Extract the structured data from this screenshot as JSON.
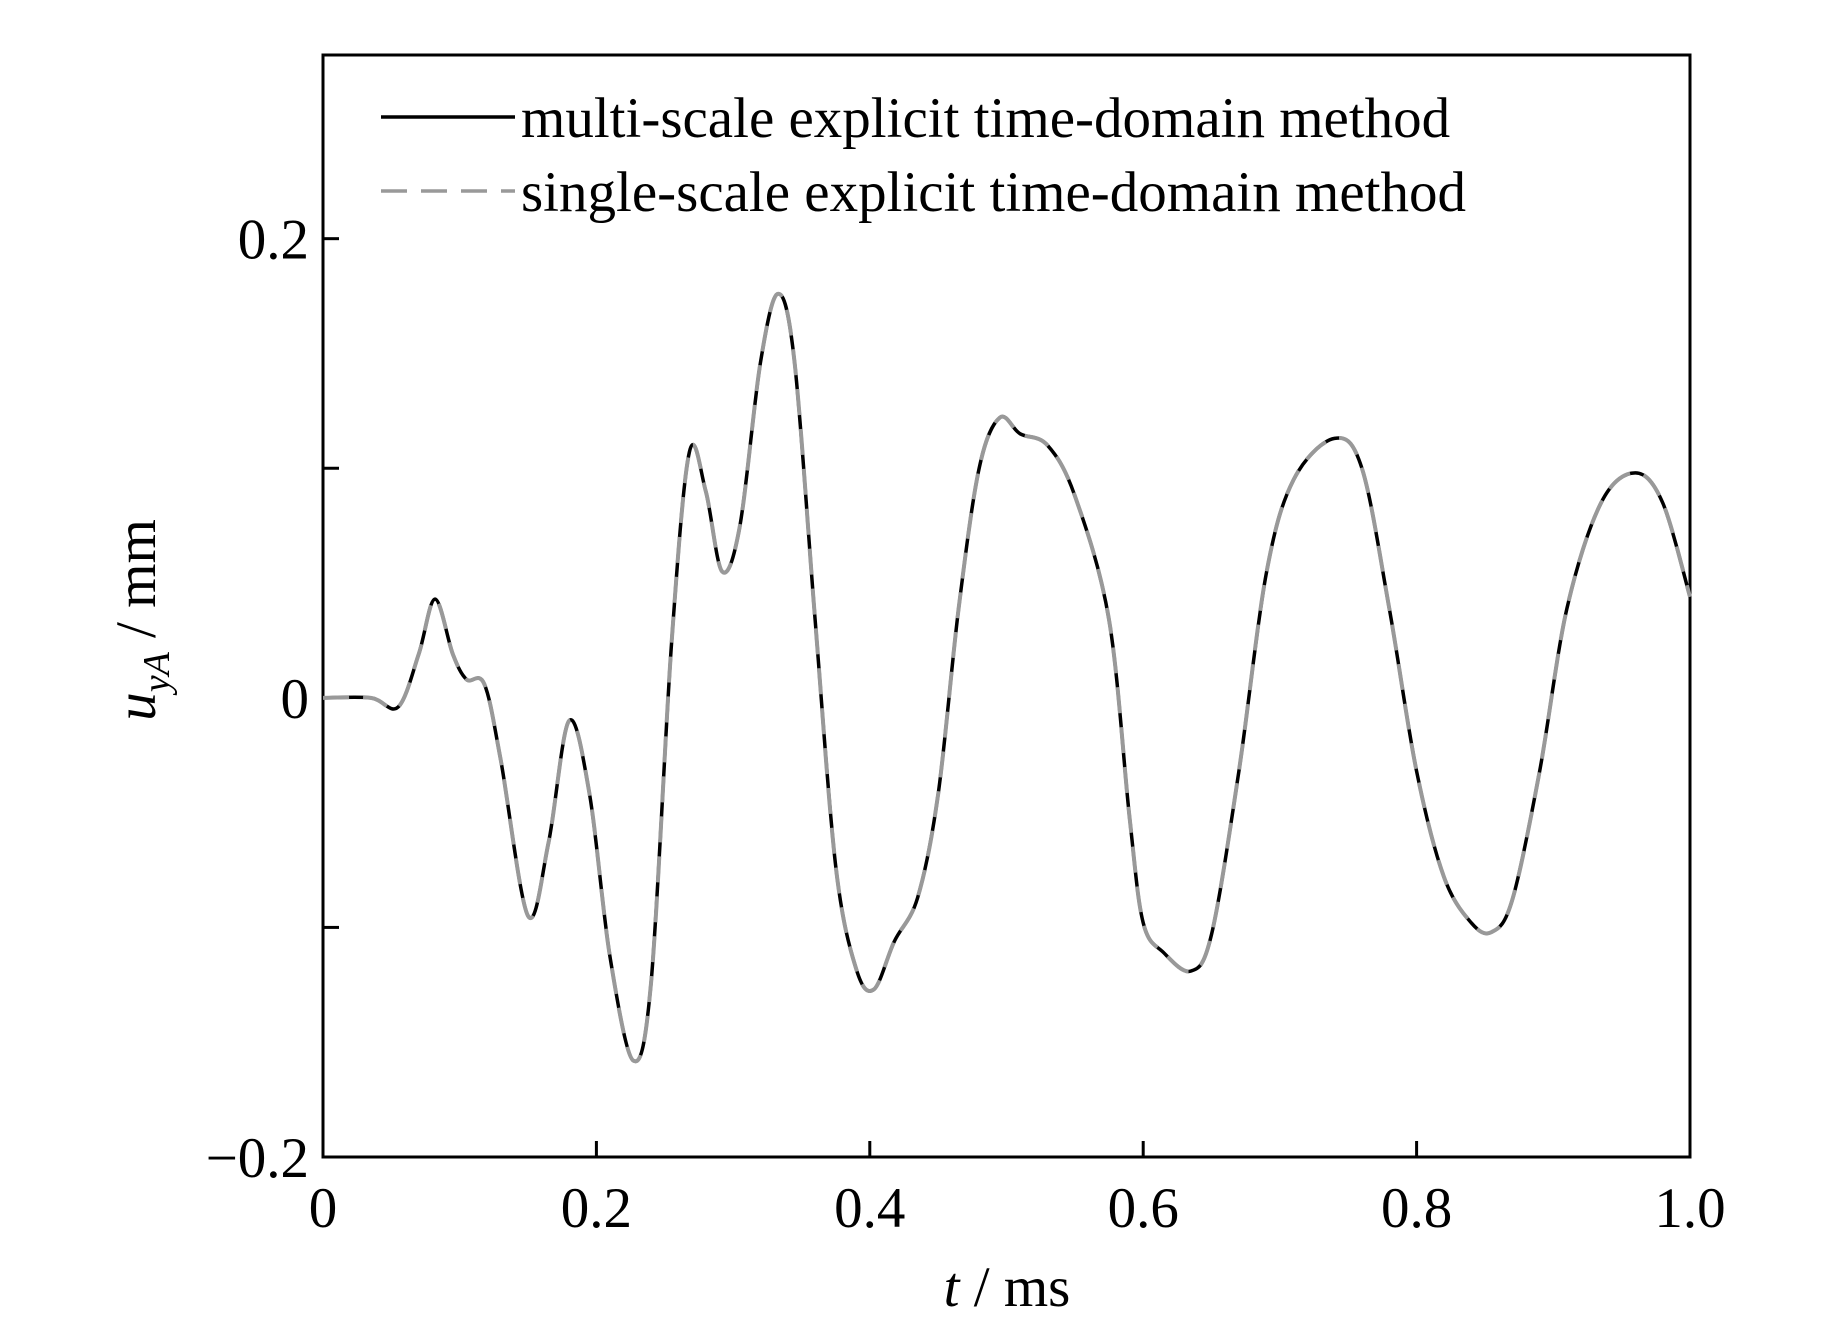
{
  "chart_data": {
    "type": "line",
    "x_label": {
      "symbol": "t",
      "unit": " / ms"
    },
    "y_label": {
      "symbol": "u",
      "subscript": "yA",
      "unit": " / mm"
    },
    "x": [
      0,
      0.035,
      0.055,
      0.07,
      0.082,
      0.095,
      0.105,
      0.118,
      0.13,
      0.15,
      0.165,
      0.18,
      0.195,
      0.21,
      0.227,
      0.24,
      0.255,
      0.268,
      0.28,
      0.292,
      0.305,
      0.32,
      0.333,
      0.345,
      0.36,
      0.375,
      0.39,
      0.403,
      0.418,
      0.435,
      0.45,
      0.465,
      0.48,
      0.495,
      0.51,
      0.53,
      0.55,
      0.575,
      0.59,
      0.6,
      0.615,
      0.635,
      0.65,
      0.67,
      0.69,
      0.71,
      0.74,
      0.76,
      0.78,
      0.8,
      0.82,
      0.84,
      0.855,
      0.87,
      0.89,
      0.91,
      0.935,
      0.96,
      0.98,
      1.0
    ],
    "series": [
      {
        "name": "multi-scale explicit time-domain method",
        "color": "#000000",
        "dash": false,
        "values": [
          0,
          0,
          -0.004,
          0.019,
          0.043,
          0.019,
          0.008,
          0.006,
          -0.027,
          -0.095,
          -0.063,
          -0.01,
          -0.042,
          -0.113,
          -0.158,
          -0.124,
          0.024,
          0.107,
          0.09,
          0.055,
          0.075,
          0.146,
          0.176,
          0.146,
          0.034,
          -0.073,
          -0.118,
          -0.127,
          -0.106,
          -0.087,
          -0.042,
          0.039,
          0.1,
          0.122,
          0.115,
          0.11,
          0.088,
          0.034,
          -0.052,
          -0.098,
          -0.111,
          -0.119,
          -0.103,
          -0.032,
          0.054,
          0.095,
          0.113,
          0.1,
          0.039,
          -0.032,
          -0.078,
          -0.098,
          -0.102,
          -0.088,
          -0.032,
          0.039,
          0.085,
          0.098,
          0.085,
          0.044
        ]
      },
      {
        "name": "single-scale explicit time-domain method",
        "color": "#999999",
        "dash": true,
        "values": [
          0,
          0,
          -0.004,
          0.019,
          0.043,
          0.019,
          0.008,
          0.006,
          -0.027,
          -0.095,
          -0.063,
          -0.01,
          -0.042,
          -0.113,
          -0.158,
          -0.124,
          0.024,
          0.107,
          0.09,
          0.055,
          0.075,
          0.146,
          0.176,
          0.146,
          0.034,
          -0.073,
          -0.118,
          -0.127,
          -0.106,
          -0.087,
          -0.042,
          0.039,
          0.1,
          0.122,
          0.115,
          0.11,
          0.088,
          0.034,
          -0.052,
          -0.098,
          -0.111,
          -0.119,
          -0.103,
          -0.032,
          0.054,
          0.095,
          0.113,
          0.1,
          0.039,
          -0.032,
          -0.078,
          -0.098,
          -0.102,
          -0.088,
          -0.032,
          0.039,
          0.085,
          0.098,
          0.085,
          0.044
        ]
      }
    ],
    "xlim": [
      0,
      1
    ],
    "ylim": [
      -0.2,
      0.28
    ],
    "xticks": [
      0,
      0.2,
      0.4,
      0.6,
      0.8,
      {
        "value": 1,
        "label": "1.0"
      }
    ],
    "yticks": [
      {
        "value": -0.2,
        "label": "−0.2"
      },
      0,
      0.2
    ],
    "yminor_ticks": [
      -0.1,
      0.1
    ],
    "legend": "top-left",
    "grid": false
  }
}
